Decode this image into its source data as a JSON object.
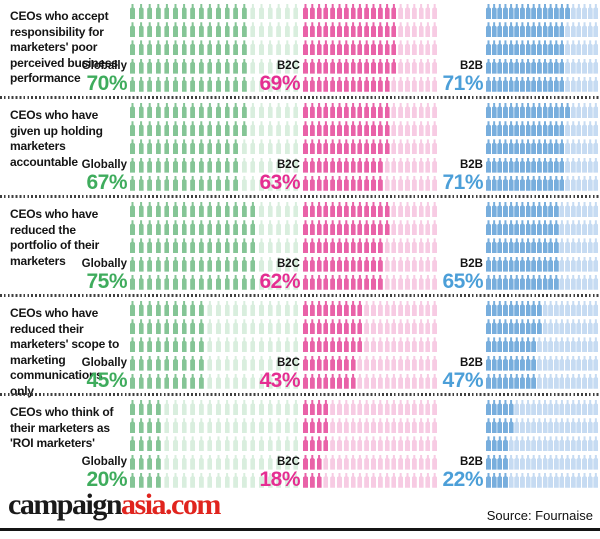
{
  "chart_data": {
    "type": "bar",
    "variant": "pictogram",
    "icons_per_group": 100,
    "grid": {
      "columns": 20,
      "rows": 5
    },
    "legend_position": "inline-left-of-each-grid",
    "groups": [
      "Globally",
      "B2C",
      "B2B"
    ],
    "group_colors": {
      "Globally": {
        "filled": "#85C596",
        "empty": "#D9EEDE",
        "percent_text": "#3FAC5D"
      },
      "B2C": {
        "filled": "#E962A8",
        "empty": "#F7CBE3",
        "percent_text": "#E52E92"
      },
      "B2B": {
        "filled": "#78AEDD",
        "empty": "#C6DBF2",
        "percent_text": "#4C9FD8"
      }
    },
    "rows": [
      {
        "statement": "CEOs who accept responsibility for marketers' poor perceived business performance",
        "values": {
          "Globally": 70,
          "B2C": 69,
          "B2B": 71
        }
      },
      {
        "statement": "CEOs who have given up holding marketers accountable",
        "values": {
          "Globally": 67,
          "B2C": 63,
          "B2B": 71
        }
      },
      {
        "statement": "CEOs who have reduced the portfolio of their marketers",
        "values": {
          "Globally": 75,
          "B2C": 62,
          "B2B": 65
        }
      },
      {
        "statement": "CEOs who have reduced their marketers' scope to marketing communications only",
        "values": {
          "Globally": 45,
          "B2C": 43,
          "B2B": 47
        }
      },
      {
        "statement": "CEOs who think of their marketers as 'ROI marketers'",
        "values": {
          "Globally": 20,
          "B2C": 18,
          "B2B": 22
        }
      }
    ]
  },
  "footer": {
    "logo_black": "campaign",
    "logo_red": "asia.com",
    "source": "Source: Fournaise"
  }
}
